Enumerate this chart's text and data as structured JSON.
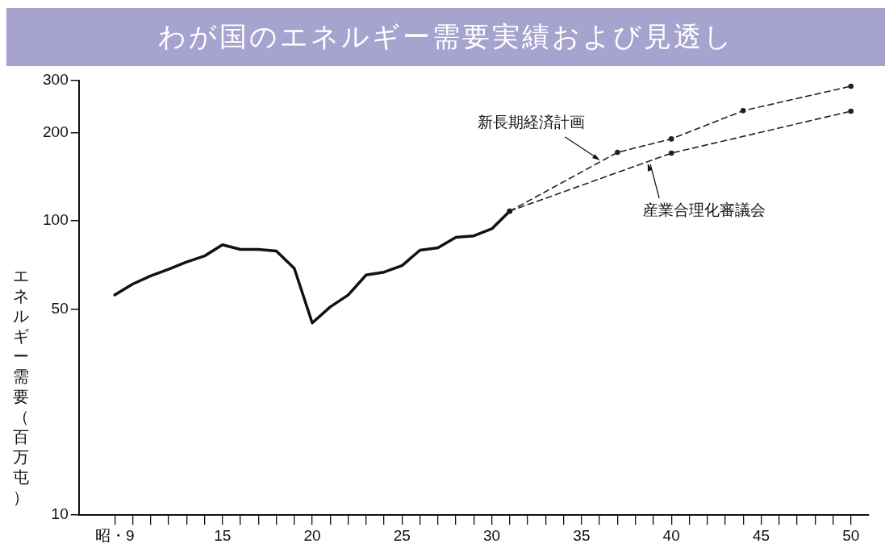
{
  "chart_data": {
    "type": "line",
    "title": "わが国のエネルギー需要実績および見透し",
    "ylabel": "エネルギー需要（百万屯）",
    "log": "y",
    "grid": false,
    "legend": false,
    "xlim": [
      7,
      51
    ],
    "ylim": [
      10,
      300
    ],
    "xticks": [
      {
        "value": 9,
        "label": "昭・9"
      },
      {
        "value": 10,
        "label": null
      },
      {
        "value": 11,
        "label": null
      },
      {
        "value": 12,
        "label": null
      },
      {
        "value": 13,
        "label": null
      },
      {
        "value": 14,
        "label": null
      },
      15,
      {
        "value": 16,
        "label": null
      },
      {
        "value": 17,
        "label": null
      },
      {
        "value": 18,
        "label": null
      },
      {
        "value": 19,
        "label": null
      },
      20,
      {
        "value": 21,
        "label": null
      },
      {
        "value": 22,
        "label": null
      },
      {
        "value": 23,
        "label": null
      },
      {
        "value": 24,
        "label": null
      },
      25,
      {
        "value": 26,
        "label": null
      },
      {
        "value": 27,
        "label": null
      },
      {
        "value": 28,
        "label": null
      },
      {
        "value": 29,
        "label": null
      },
      30,
      {
        "value": 31,
        "label": null
      },
      {
        "value": 32,
        "label": null
      },
      {
        "value": 33,
        "label": null
      },
      {
        "value": 34,
        "label": null
      },
      35,
      {
        "value": 36,
        "label": null
      },
      {
        "value": 37,
        "label": null
      },
      {
        "value": 38,
        "label": null
      },
      {
        "value": 39,
        "label": null
      },
      40,
      {
        "value": 41,
        "label": null
      },
      {
        "value": 42,
        "label": null
      },
      {
        "value": 43,
        "label": null
      },
      {
        "value": 44,
        "label": null
      },
      45,
      {
        "value": 46,
        "label": null
      },
      {
        "value": 47,
        "label": null
      },
      {
        "value": 48,
        "label": null
      },
      {
        "value": 49,
        "label": null
      },
      50
    ],
    "yticks": [
      10,
      50,
      100,
      200,
      300
    ],
    "series": [
      {
        "color": "#111111",
        "line_style": "solid",
        "marker": "none",
        "x": [
          9,
          10,
          11,
          12,
          13,
          14,
          15,
          16,
          17,
          18,
          19,
          20,
          21,
          22,
          23,
          24,
          25,
          26,
          27,
          28,
          29,
          30,
          31
        ],
        "values": [
          56,
          61,
          65,
          68.5,
          72.5,
          76,
          83,
          80,
          80,
          79,
          69,
          45,
          51,
          56,
          65.5,
          67,
          70.5,
          79.5,
          81,
          88,
          89,
          94,
          108
        ]
      },
      {
        "name": "新長期経済計画",
        "color": "#222222",
        "line_style": "dashed",
        "marker": "circle",
        "x": [
          31,
          37,
          40,
          44,
          50
        ],
        "values": [
          108,
          171,
          190,
          237,
          287
        ]
      },
      {
        "name": "産業合理化審議会",
        "color": "#222222",
        "line_style": "dashed",
        "marker": "circle",
        "x": [
          31,
          40,
          50
        ],
        "values": [
          108,
          170,
          236
        ]
      }
    ]
  }
}
